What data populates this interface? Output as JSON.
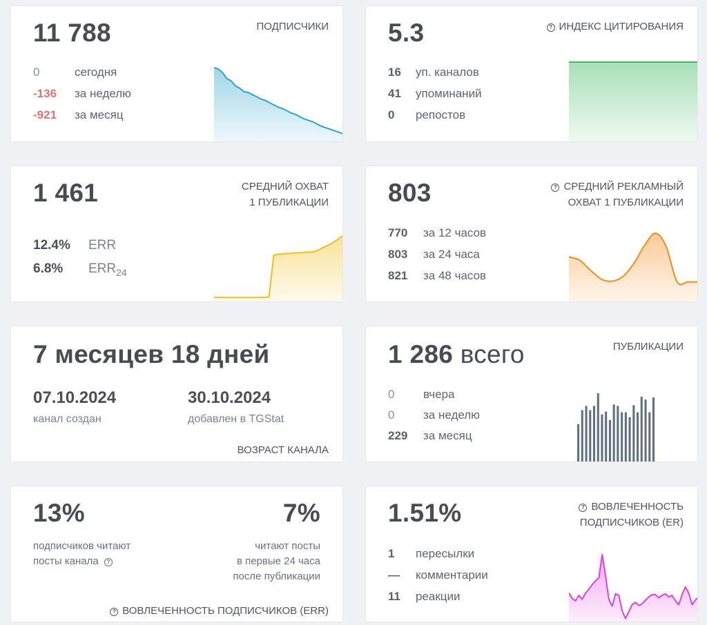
{
  "subscribers": {
    "value": "11 788",
    "title": "ПОДПИСЧИКИ",
    "rows": [
      {
        "value": "0",
        "label": "сегодня"
      },
      {
        "value": "-136",
        "label": "за неделю"
      },
      {
        "value": "-921",
        "label": "за месяц"
      }
    ],
    "color": "#2ea3cc"
  },
  "citation": {
    "value": "5.3",
    "title": "ИНДЕКС ЦИТИРОВАНИЯ",
    "rows": [
      {
        "value": "16",
        "label": "уп. каналов"
      },
      {
        "value": "41",
        "label": "упоминаний"
      },
      {
        "value": "0",
        "label": "репостов"
      }
    ],
    "color": "#3cba5e"
  },
  "reach": {
    "value": "1 461",
    "title_line1": "СРЕДНИЙ ОХВАТ",
    "title_line2": "1 ПУБЛИКАЦИИ",
    "err_value": "12.4%",
    "err_label": "ERR",
    "err24_value": "6.8%",
    "err24_label": "ERR",
    "err24_sub": "24",
    "color": "#f2be1c"
  },
  "ad_reach": {
    "value": "803",
    "title_line1": "СРЕДНИЙ РЕКЛАМНЫЙ",
    "title_line2": "ОХВАТ 1 ПУБЛИКАЦИИ",
    "rows": [
      {
        "value": "770",
        "label": "за 12 часов"
      },
      {
        "value": "803",
        "label": "за 24 часа"
      },
      {
        "value": "821",
        "label": "за 48 часов"
      }
    ],
    "color": "#f28c1c"
  },
  "age": {
    "value": "7 месяцев 18 дней",
    "created_date": "07.10.2024",
    "created_label": "канал создан",
    "added_date": "30.10.2024",
    "added_label": "добавлен в TGStat",
    "title": "ВОЗРАСТ КАНАЛА"
  },
  "posts": {
    "value": "1 286",
    "value_suffix": "всего",
    "title": "ПУБЛИКАЦИИ",
    "rows": [
      {
        "value": "0",
        "label": "вчера"
      },
      {
        "value": "0",
        "label": "за неделю"
      },
      {
        "value": "229",
        "label": "за месяц"
      }
    ],
    "color": "#5f7080"
  },
  "read": {
    "value1": "13%",
    "label1_line1": "подписчиков читают",
    "label1_line2": "посты канала",
    "value2": "7%",
    "label2_line1": "читают посты",
    "label2_line2": "в первые 24 часа",
    "label2_line3": "после публикации",
    "footer": "ВОВЛЕЧЕННОСТЬ ПОДПИСЧИКОВ (ERR)"
  },
  "er": {
    "value": "1.51%",
    "title_line1": "ВОВЛЕЧЕННОСТЬ",
    "title_line2": "ПОДПИСЧИКОВ (ER)",
    "rows": [
      {
        "value": "1",
        "label": "пересылки"
      },
      {
        "value": "—",
        "label": "комментарии"
      },
      {
        "value": "11",
        "label": "реакции"
      }
    ],
    "color": "#e23ee0"
  },
  "chart_data": [
    {
      "type": "area",
      "name": "subscribers-trend",
      "values": [
        100,
        98,
        93,
        85,
        82,
        75,
        72,
        67,
        66,
        63,
        60,
        57,
        55,
        52,
        49,
        46,
        44,
        41,
        38,
        36,
        33,
        30,
        28,
        26,
        23,
        20,
        18,
        16,
        14,
        12,
        10
      ]
    },
    {
      "type": "area",
      "name": "citation-trend",
      "values": [
        100,
        100
      ]
    },
    {
      "type": "area",
      "name": "reach-trend",
      "values": [
        5,
        5,
        5,
        5,
        5,
        5,
        5,
        5,
        5,
        5,
        5,
        5,
        6,
        70,
        72,
        72,
        73,
        73,
        74,
        74,
        75,
        75,
        76,
        79,
        83,
        86,
        90,
        95,
        100
      ]
    },
    {
      "type": "area",
      "name": "ad-reach-trend",
      "values": [
        65,
        60,
        45,
        32,
        29,
        36,
        55,
        82,
        100,
        80,
        28,
        28,
        28
      ]
    },
    {
      "type": "bar",
      "name": "posts-per-day",
      "values": [
        54,
        74,
        80,
        74,
        80,
        98,
        68,
        72,
        60,
        82,
        80,
        71,
        71,
        64,
        81,
        71,
        93,
        89,
        71,
        92,
        0,
        0,
        0,
        0,
        0,
        0,
        0,
        0,
        0,
        0
      ]
    },
    {
      "type": "area",
      "name": "er-trend",
      "values": [
        36,
        29,
        26,
        33,
        28,
        36,
        41,
        47,
        52,
        56,
        86,
        59,
        28,
        19,
        35,
        33,
        13,
        3,
        12,
        21,
        24,
        20,
        22,
        27,
        31,
        34,
        34,
        30,
        33,
        35,
        31,
        33,
        26,
        21,
        34,
        44,
        36,
        21,
        27,
        31
      ]
    }
  ]
}
